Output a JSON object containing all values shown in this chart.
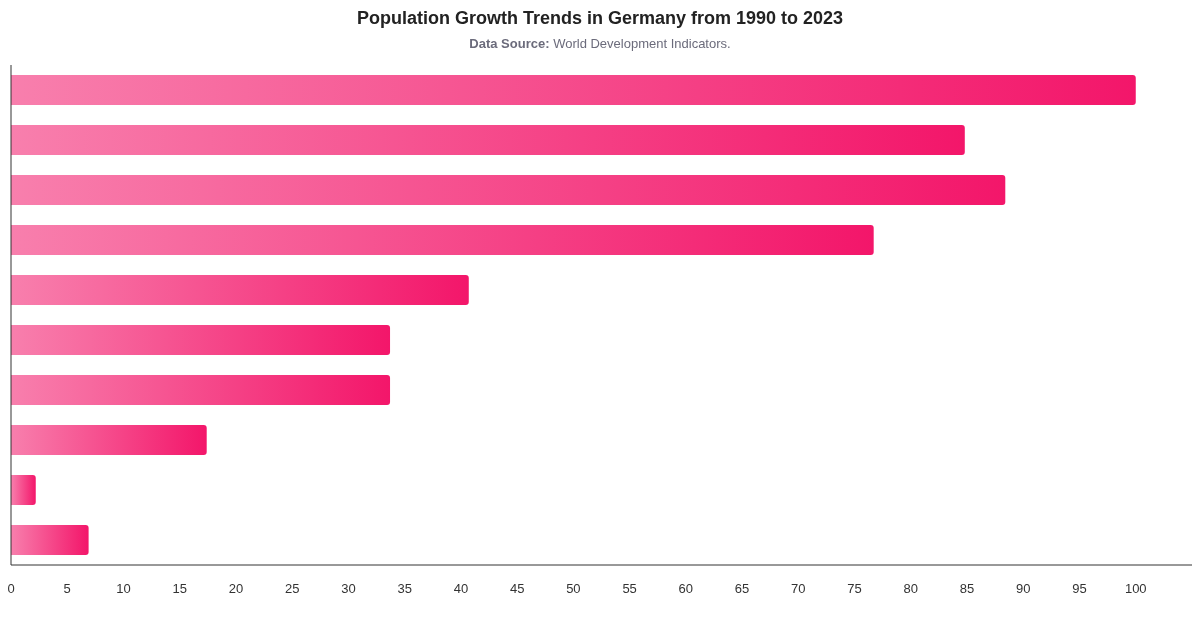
{
  "chart_data": {
    "type": "bar",
    "orientation": "horizontal",
    "title": "Population Growth Trends in Germany from 1990 to 2023",
    "subtitle": "Data Source: World Development Indicators.",
    "categories": [
      null,
      null,
      null,
      null,
      null,
      null,
      null,
      null,
      null,
      null
    ],
    "values": [
      100,
      84.8,
      88.4,
      76.7,
      40.7,
      33.7,
      33.7,
      17.4,
      2.2,
      6.9
    ],
    "color": "#f3166a",
    "xlim": [
      0,
      105
    ],
    "xticks": [
      0,
      5,
      10,
      15,
      20,
      25,
      30,
      35,
      40,
      45,
      50,
      55,
      60,
      65,
      70,
      75,
      80,
      85,
      90,
      95,
      100
    ],
    "grid": false
  }
}
